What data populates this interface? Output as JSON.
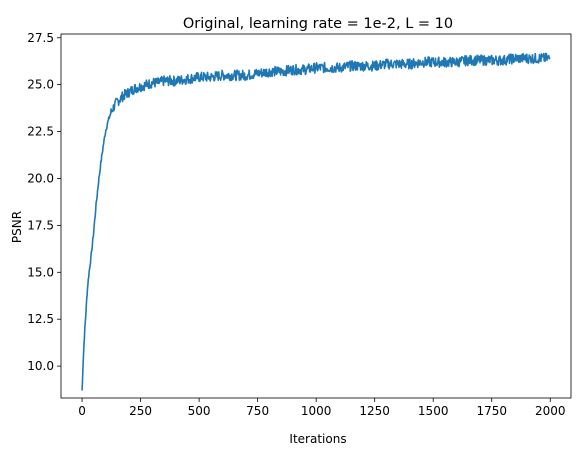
{
  "chart_data": {
    "type": "line",
    "title": "Original, learning rate = 1e-2, L = 10",
    "xlabel": "Iterations",
    "ylabel": "PSNR",
    "xlim": [
      -90,
      2110
    ],
    "ylim": [
      8.3,
      27.7
    ],
    "xticks": [
      0,
      250,
      500,
      750,
      1000,
      1250,
      1500,
      1750,
      2000
    ],
    "yticks": [
      10.0,
      12.5,
      15.0,
      17.5,
      20.0,
      22.5,
      25.0,
      27.5
    ],
    "grid": false,
    "legend": "none",
    "line_color": "#1f77b4",
    "series": [
      {
        "x": [
          0,
          5,
          10,
          15,
          20,
          25,
          30,
          40,
          50,
          60,
          70,
          80,
          90,
          100,
          110,
          120,
          130,
          140,
          150,
          160,
          175,
          200,
          225,
          250,
          275,
          300,
          325,
          350,
          375,
          400,
          450,
          500,
          550,
          600,
          650,
          700,
          750,
          800,
          850,
          900,
          950,
          1000,
          1050,
          1100,
          1150,
          1200,
          1250,
          1300,
          1350,
          1400,
          1450,
          1500,
          1550,
          1600,
          1650,
          1700,
          1750,
          1800,
          1850,
          1900,
          1950,
          2000
        ],
        "y": [
          8.7,
          10.3,
          11.6,
          12.6,
          13.6,
          14.4,
          15.0,
          16.0,
          17.2,
          18.6,
          19.8,
          20.8,
          21.7,
          22.5,
          23.0,
          23.4,
          23.7,
          23.9,
          24.1,
          24.2,
          24.4,
          24.6,
          24.8,
          24.9,
          25.0,
          25.1,
          25.1,
          25.2,
          25.2,
          25.2,
          25.3,
          25.4,
          25.4,
          25.5,
          25.5,
          25.5,
          25.6,
          25.7,
          25.7,
          25.8,
          25.8,
          25.9,
          25.9,
          25.9,
          26.0,
          26.0,
          26.0,
          26.1,
          26.1,
          26.1,
          26.2,
          26.2,
          26.2,
          26.2,
          26.3,
          26.3,
          26.3,
          26.3,
          26.4,
          26.4,
          26.4,
          26.4
        ]
      }
    ]
  }
}
